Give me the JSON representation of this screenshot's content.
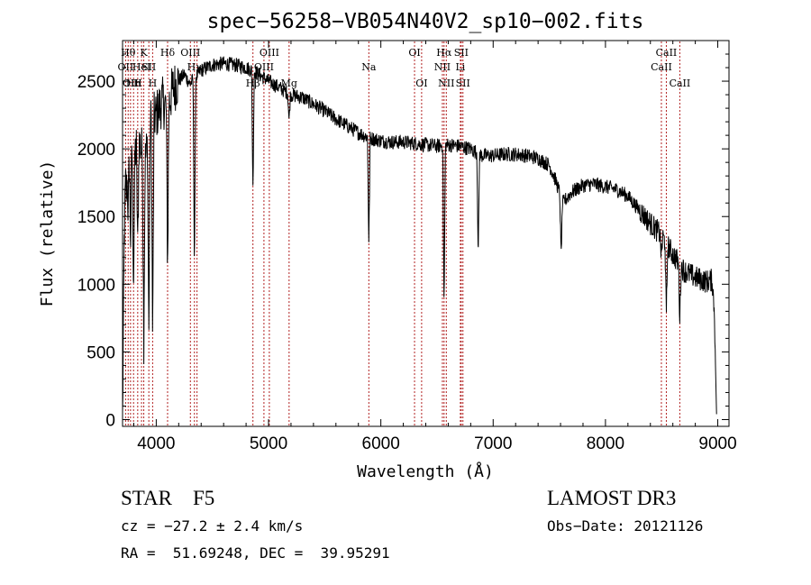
{
  "chart_data": {
    "type": "line",
    "title": "spec−56258−VB054N40V2_sp10−002.fits",
    "xlabel": "Wavelength (Å)",
    "ylabel": "Flux (relative)",
    "xlim": [
      3700,
      9100
    ],
    "ylim": [
      -50,
      2800
    ],
    "x_ticks": [
      4000,
      5000,
      6000,
      7000,
      8000,
      9000
    ],
    "y_ticks": [
      0,
      500,
      1000,
      1500,
      2000,
      2500
    ],
    "line_color": "#000000",
    "marker_color": "#b22222",
    "continuum": [
      [
        3700,
        0
      ],
      [
        3715,
        1300
      ],
      [
        3730,
        1900
      ],
      [
        3760,
        2050
      ],
      [
        3800,
        1950
      ],
      [
        3850,
        2050
      ],
      [
        3900,
        1900
      ],
      [
        3950,
        2200
      ],
      [
        4000,
        2250
      ],
      [
        4050,
        2350
      ],
      [
        4100,
        2300
      ],
      [
        4150,
        2450
      ],
      [
        4200,
        2500
      ],
      [
        4250,
        2550
      ],
      [
        4300,
        2480
      ],
      [
        4400,
        2580
      ],
      [
        4500,
        2620
      ],
      [
        4600,
        2630
      ],
      [
        4700,
        2620
      ],
      [
        4800,
        2600
      ],
      [
        4900,
        2560
      ],
      [
        5000,
        2500
      ],
      [
        5100,
        2450
      ],
      [
        5200,
        2400
      ],
      [
        5300,
        2380
      ],
      [
        5400,
        2330
      ],
      [
        5500,
        2280
      ],
      [
        5600,
        2220
      ],
      [
        5700,
        2170
      ],
      [
        5800,
        2120
      ],
      [
        5900,
        2080
      ],
      [
        6000,
        2060
      ],
      [
        6100,
        2050
      ],
      [
        6200,
        2050
      ],
      [
        6300,
        2040
      ],
      [
        6400,
        2030
      ],
      [
        6500,
        2020
      ],
      [
        6600,
        2030
      ],
      [
        6700,
        2020
      ],
      [
        6800,
        2000
      ],
      [
        6900,
        1950
      ],
      [
        7000,
        1950
      ],
      [
        7100,
        1960
      ],
      [
        7200,
        1960
      ],
      [
        7300,
        1950
      ],
      [
        7400,
        1930
      ],
      [
        7500,
        1880
      ],
      [
        7560,
        1760
      ],
      [
        7620,
        1600
      ],
      [
        7700,
        1680
      ],
      [
        7800,
        1730
      ],
      [
        7900,
        1740
      ],
      [
        8000,
        1720
      ],
      [
        8100,
        1700
      ],
      [
        8200,
        1650
      ],
      [
        8300,
        1550
      ],
      [
        8400,
        1450
      ],
      [
        8500,
        1360
      ],
      [
        8600,
        1220
      ],
      [
        8700,
        1100
      ],
      [
        8800,
        1050
      ],
      [
        8900,
        1020
      ],
      [
        8950,
        1030
      ],
      [
        8970,
        800
      ],
      [
        8990,
        0
      ]
    ],
    "absorption_dips": [
      [
        3734,
        1650
      ],
      [
        3750,
        1500
      ],
      [
        3771,
        1300
      ],
      [
        3798,
        1000
      ],
      [
        3835,
        1250
      ],
      [
        3889,
        600
      ],
      [
        3934,
        600
      ],
      [
        3968,
        550
      ],
      [
        4101,
        1100
      ],
      [
        4340,
        1100
      ],
      [
        4861,
        1700
      ],
      [
        5183,
        2200
      ],
      [
        5893,
        1300
      ],
      [
        6563,
        800
      ],
      [
        6867,
        1200
      ],
      [
        7605,
        1200
      ],
      [
        8498,
        1200
      ],
      [
        8542,
        750
      ],
      [
        8662,
        750
      ]
    ],
    "noise_amplitude": 55,
    "spectral_lines": [
      {
        "w": 3727,
        "label": "OII",
        "row": 2
      },
      {
        "w": 3750,
        "label": "Hθ",
        "row": 1
      },
      {
        "w": 3771,
        "label": "OII",
        "row": 3
      },
      {
        "w": 3798,
        "label": "Hn",
        "row": 3
      },
      {
        "w": 3835,
        "label": "H",
        "row": 3
      },
      {
        "w": 3869,
        "label": "HeI",
        "row": 2
      },
      {
        "w": 3889,
        "label": "K",
        "row": 1
      },
      {
        "w": 3934,
        "label": "SII",
        "row": 2
      },
      {
        "w": 3968,
        "label": "H",
        "row": 3
      },
      {
        "w": 4101,
        "label": "Hδ",
        "row": 1
      },
      {
        "w": 4304,
        "label": "OIII",
        "row": 1
      },
      {
        "w": 4340,
        "label": "Hγ",
        "row": 2
      },
      {
        "w": 4363,
        "label": "",
        "row": 0
      },
      {
        "w": 4861,
        "label": "Hβ",
        "row": 3
      },
      {
        "w": 4959,
        "label": "OIII",
        "row": 2
      },
      {
        "w": 5007,
        "label": "OIII",
        "row": 1
      },
      {
        "w": 5183,
        "label": "Mg",
        "row": 3
      },
      {
        "w": 5893,
        "label": "Na",
        "row": 2
      },
      {
        "w": 6300,
        "label": "OI",
        "row": 1
      },
      {
        "w": 6363,
        "label": "OI",
        "row": 3
      },
      {
        "w": 6548,
        "label": "NII",
        "row": 2
      },
      {
        "w": 6563,
        "label": "Hα",
        "row": 1
      },
      {
        "w": 6583,
        "label": "NII",
        "row": 3
      },
      {
        "w": 6716,
        "label": "SII",
        "row": 1
      },
      {
        "w": 6731,
        "label": "SII",
        "row": 3
      },
      {
        "w": 6708,
        "label": "Li",
        "row": 2
      },
      {
        "w": 8498,
        "label": "CaII",
        "row": 2
      },
      {
        "w": 8542,
        "label": "CaII",
        "row": 1
      },
      {
        "w": 8662,
        "label": "CaII",
        "row": 3
      }
    ]
  },
  "info": {
    "class_label": "STAR",
    "subclass": "F5",
    "survey": "LAMOST DR3",
    "cz": "cz = −27.2 ± 2.4 km/s",
    "obs_date": "Obs−Date: 20121126",
    "radec": "RA =  51.69248, DEC =  39.95291"
  }
}
